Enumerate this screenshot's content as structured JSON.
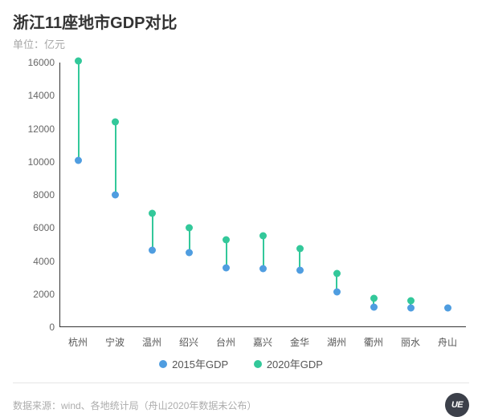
{
  "title": "浙江11座地市GDP对比",
  "subtitle": "单位：亿元",
  "chart": {
    "type": "dumbbell",
    "background_color": "#ffffff",
    "axis_color": "#333333",
    "label_color": "#555555",
    "label_fontsize": 12,
    "title_fontsize": 20,
    "ylim": [
      0,
      16000
    ],
    "ytick_step": 2000,
    "yticks": [
      0,
      2000,
      4000,
      6000,
      8000,
      10000,
      12000,
      14000,
      16000
    ],
    "categories": [
      "杭州",
      "宁波",
      "温州",
      "绍兴",
      "台州",
      "嘉兴",
      "金华",
      "湖州",
      "衢州",
      "丽水",
      "舟山"
    ],
    "series": [
      {
        "key": "gdp2015",
        "label": "2015年GDP",
        "color": "#4f9de0",
        "marker": "circle",
        "marker_size": 9
      },
      {
        "key": "gdp2020",
        "label": "2020年GDP",
        "color": "#33c89a",
        "marker": "circle",
        "marker_size": 9
      }
    ],
    "connector": {
      "color": "#33c89a",
      "width": 2
    },
    "data": {
      "gdp2015": [
        10050,
        8000,
        4620,
        4470,
        3560,
        3520,
        3400,
        2080,
        1150,
        1100,
        1100
      ],
      "gdp2020": [
        16100,
        12400,
        6870,
        6000,
        5260,
        5510,
        4700,
        3200,
        1700,
        1540,
        null
      ]
    }
  },
  "legend_items": [
    "2015年GDP",
    "2020年GDP"
  ],
  "footer_text": "数据来源：wind、各地统计局（舟山2020年数据未公布）",
  "logo_text": "UE"
}
